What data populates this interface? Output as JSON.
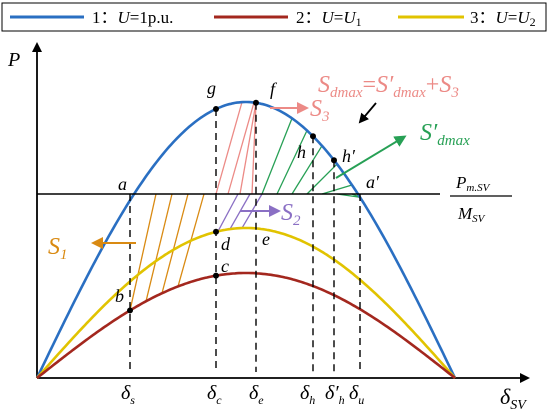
{
  "legend": {
    "items": [
      {
        "num": "1",
        "sep": "：",
        "var": "U",
        "eq": "=",
        "val": "1p.u.",
        "sub": "",
        "color": "#2a6fc2"
      },
      {
        "num": "2",
        "sep": "：",
        "var": "U",
        "eq": "=",
        "val": "U",
        "sub": "1",
        "color": "#a3271e"
      },
      {
        "num": "3",
        "sep": "：",
        "var": "U",
        "eq": "=",
        "val": "U",
        "sub": "2",
        "color": "#e1c300"
      }
    ]
  },
  "axes": {
    "y_label": "P",
    "x_label": "δ",
    "x_label_sub": "SV",
    "ratio_num": "P",
    "ratio_num_sub": "m.SV",
    "ratio_den": "M",
    "ratio_den_sub": "SV"
  },
  "points": {
    "a": "a",
    "a_prime": "a′",
    "b": "b",
    "c": "c",
    "d": "d",
    "e": "e",
    "f": "f",
    "g": "g",
    "h": "h",
    "h_prime": "h′"
  },
  "x_ticks": [
    {
      "id": "s",
      "base": "δ",
      "sub": "s"
    },
    {
      "id": "c",
      "base": "δ",
      "sub": "c"
    },
    {
      "id": "e",
      "base": "δ",
      "sub": "e"
    },
    {
      "id": "h",
      "base": "δ",
      "sub": "h"
    },
    {
      "id": "hp",
      "base": "δ′",
      "sub": "h"
    },
    {
      "id": "u",
      "base": "δ",
      "sub": "u"
    }
  ],
  "areas": {
    "s1": {
      "base": "S",
      "sub": "1",
      "color": "#d98a12"
    },
    "s2": {
      "base": "S",
      "sub": "2",
      "color": "#8a6fc4"
    },
    "s3": {
      "base": "S",
      "sub": "3",
      "color": "#ec8a86"
    },
    "sdmax_prime": {
      "base": "S′",
      "sub": "dmax",
      "color": "#27a055"
    }
  },
  "formula": {
    "lhs": "S",
    "lhs_sub": "dmax",
    "eq": "=",
    "t1": "S′",
    "t1_sub": "dmax",
    "plus": "+",
    "t2": "S",
    "t2_sub": "3",
    "color": "#ec8a86"
  },
  "colors": {
    "curve1": "#2a6fc2",
    "curve2": "#a3271e",
    "curve3": "#e1c300",
    "hatch_orange": "#d98a12",
    "hatch_pink": "#ec8a86",
    "hatch_green": "#27a055",
    "hatch_purple": "#8a6fc4",
    "axis": "#000000"
  }
}
